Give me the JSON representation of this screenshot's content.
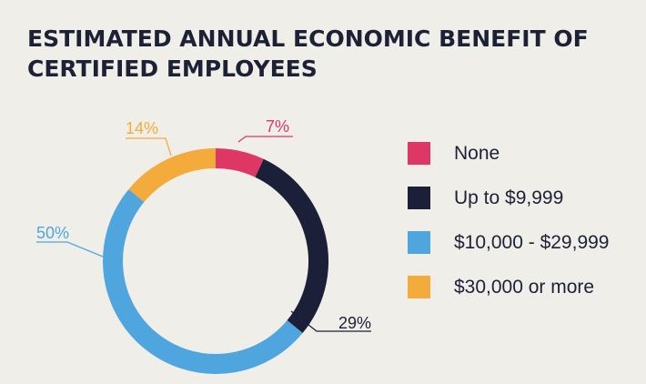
{
  "title_line1": "ESTIMATED ANNUAL ECONOMIC BENEFIT OF",
  "title_line2": "CERTIFIED EMPLOYEES",
  "chart_data": {
    "type": "pie",
    "donut": true,
    "title": "ESTIMATED ANNUAL ECONOMIC BENEFIT OF CERTIFIED EMPLOYEES",
    "legend_position": "right",
    "slices": [
      {
        "label": "None",
        "value": 7,
        "display": "7%",
        "color": "#de3766"
      },
      {
        "label": "Up to $9,999",
        "value": 29,
        "display": "29%",
        "color": "#1b1f38"
      },
      {
        "label": "$10,000 - $29,999",
        "value": 50,
        "display": "50%",
        "color": "#4fa5de"
      },
      {
        "label": "$30,000 or more",
        "value": 14,
        "display": "14%",
        "color": "#f3ac3b"
      }
    ]
  }
}
